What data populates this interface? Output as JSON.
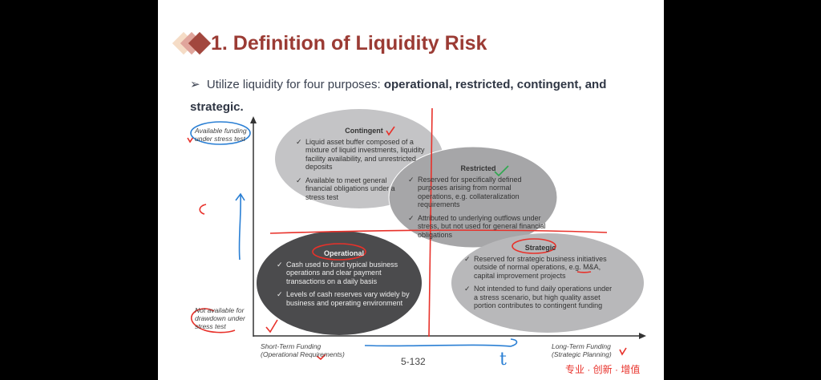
{
  "slide": {
    "title": "1. Definition of Liquidity Risk",
    "bullet_prefix": "Utilize liquidity for four purposes: ",
    "bullet_bold": "operational, restricted, contingent, and strategic.",
    "page_number": "5-132",
    "footer_slogan": "专业 · 创新 · 增值"
  },
  "diagram": {
    "y_axis_top_label": "Available funding under stress test",
    "y_axis_bottom_label": "Not available for drawdown under stress test",
    "x_axis_left_label_1": "Short-Term Funding",
    "x_axis_left_label_2": "(Operational Requirements)",
    "x_axis_right_label_1": "Long-Term Funding",
    "x_axis_right_label_2": "(Strategic Planning)",
    "check": "✓",
    "quadrants": [
      {
        "name": "Contingent",
        "color": "#c4c4c6",
        "items": [
          "Liquid asset buffer composed of a mixture of liquid investments, liquidity facility availability, and unrestricted deposits",
          "Available to meet general financial obligations under a stress test"
        ]
      },
      {
        "name": "Restricted",
        "color": "#a6a6a8",
        "items": [
          "Reserved for specifically defined purposes arising from normal operations, e.g. collateralization requirements",
          "Attributed to underlying outflows under stress, but not used  for general financial obligations"
        ]
      },
      {
        "name": "Operational",
        "color": "#4b4b4d",
        "items": [
          "Cash used to fund typical business operations and clear payment transactions on a daily basis",
          "Levels of cash reserves vary widely by business and operating environment"
        ]
      },
      {
        "name": "Strategic",
        "color": "#b8b8ba",
        "items": [
          "Reserved for strategic business initiatives outside of normal operations, e.g. M&A, capital improvement projects",
          "Not intended to fund daily operations under a stress scenario, but high quality asset portion contributes to contingent  funding"
        ]
      }
    ]
  },
  "annotations": {
    "time_letter": "t",
    "red": "#e8312a",
    "blue": "#2a7fd4"
  },
  "colors": {
    "title": "#9b3b34",
    "footer": "#e8312a"
  }
}
